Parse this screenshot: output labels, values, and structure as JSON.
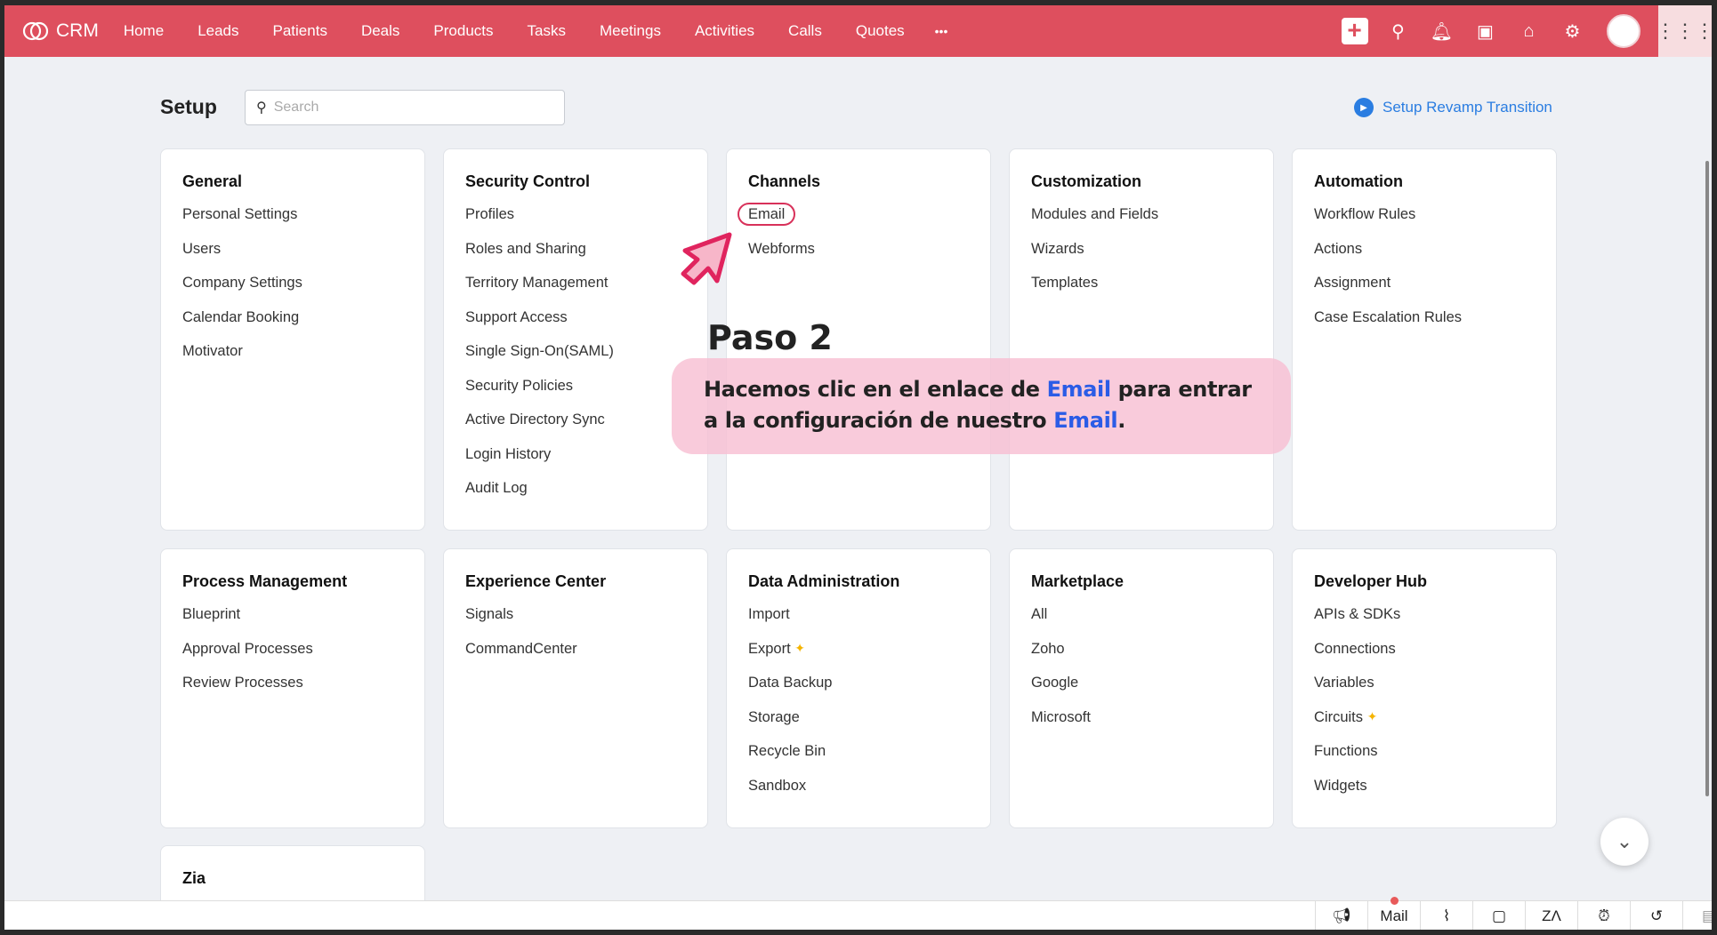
{
  "topbar": {
    "app_name": "CRM",
    "nav": [
      "Home",
      "Leads",
      "Patients",
      "Deals",
      "Products",
      "Tasks",
      "Meetings",
      "Activities",
      "Calls",
      "Quotes"
    ],
    "more": "•••",
    "brand_color": "#de4f5e"
  },
  "header": {
    "title": "Setup",
    "search_placeholder": "Search",
    "revamp_link": "Setup Revamp Transition"
  },
  "cards": [
    {
      "title": "General",
      "items": [
        "Personal Settings",
        "Users",
        "Company Settings",
        "Calendar Booking",
        "Motivator"
      ]
    },
    {
      "title": "Security Control",
      "items": [
        "Profiles",
        "Roles and Sharing",
        "Territory Management",
        "Support Access",
        "Single Sign-On(SAML)",
        "Security Policies",
        "Active Directory Sync",
        "Login History",
        "Audit Log"
      ]
    },
    {
      "title": "Channels",
      "items": [
        "Email",
        "Webforms"
      ]
    },
    {
      "title": "Customization",
      "items": [
        "Modules and Fields",
        "Wizards",
        "Templates"
      ]
    },
    {
      "title": "Automation",
      "items": [
        "Workflow Rules",
        "Actions",
        "Assignment",
        "Case Escalation Rules"
      ]
    },
    {
      "title": "Process Management",
      "items": [
        "Blueprint",
        "Approval Processes",
        "Review Processes"
      ]
    },
    {
      "title": "Experience Center",
      "items": [
        "Signals",
        "CommandCenter"
      ]
    },
    {
      "title": "Data Administration",
      "items": [
        "Import",
        "Export",
        "Data Backup",
        "Storage",
        "Recycle Bin",
        "Sandbox"
      ]
    },
    {
      "title": "Marketplace",
      "items": [
        "All",
        "Zoho",
        "Google",
        "Microsoft"
      ]
    },
    {
      "title": "Developer Hub",
      "items": [
        "APIs & SDKs",
        "Connections",
        "Variables",
        "Circuits",
        "Functions",
        "Widgets"
      ]
    },
    {
      "title": "Zia",
      "items": []
    }
  ],
  "annotation": {
    "step": "Paso 2",
    "text_1": "Hacemos clic en el enlace de ",
    "link_1": "Email",
    "text_2": " para entrar a la configuración de nuestro ",
    "link_2": "Email",
    "text_3": "."
  },
  "bottombar": {
    "mail_label": "Mail",
    "icons": [
      "megaphone-icon",
      "mail",
      "chart-icon",
      "note-icon",
      "zia-icon",
      "alarm-icon",
      "history-icon",
      "chat-icon"
    ]
  }
}
